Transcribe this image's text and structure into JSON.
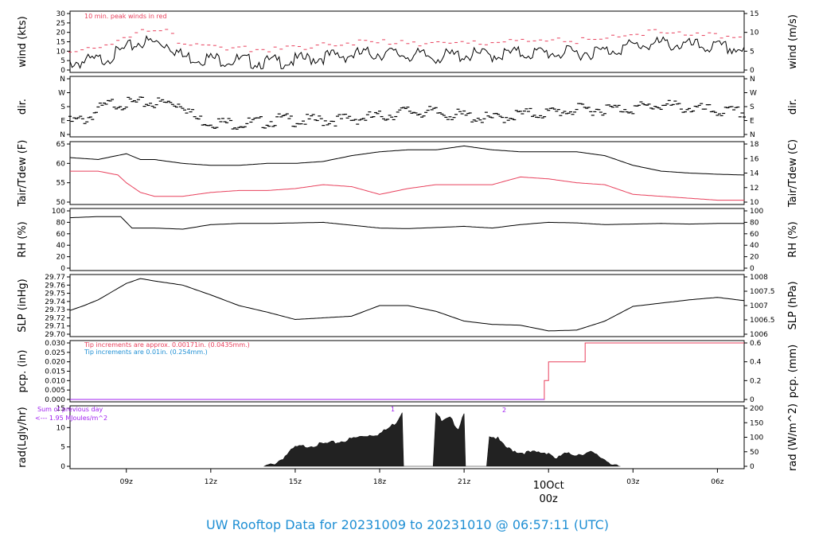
{
  "footer": {
    "title": "UW Rooftop Data for 20231009  to  20231010 @ 06:57:11  (UTC)"
  },
  "colors": {
    "black": "#000000",
    "red": "#e8405c",
    "blue": "#1f8fd4",
    "purple": "#a020f0"
  },
  "x_axis": {
    "ticks": [
      "09z",
      "12z",
      "15z",
      "18z",
      "21z",
      "",
      "03z",
      "06z"
    ],
    "day_label": "10Oct",
    "day_time": "00z"
  },
  "chart_data": [
    {
      "id": "wind",
      "type": "line",
      "ylabel_left": "wind (kts)",
      "ylabel_right": "wind (m/s)",
      "ylim": [
        0,
        30
      ],
      "left_ticks": [
        "0",
        "5",
        "10",
        "15",
        "20",
        "25",
        "30"
      ],
      "right_ticks": [
        "0",
        "5",
        "10",
        "15"
      ],
      "annotation": "10 min. peak winds in red",
      "series": [
        {
          "name": "wind",
          "color": "black",
          "x": [
            7,
            8,
            8.7,
            9.5,
            10.5,
            11,
            12,
            13,
            14,
            15,
            16,
            17,
            18,
            19,
            20,
            21,
            22,
            23,
            24,
            25,
            26,
            27,
            28,
            29,
            30,
            30.95
          ],
          "values": [
            4,
            5,
            9,
            15,
            14,
            7,
            6,
            5,
            4,
            5,
            7,
            8,
            9,
            8,
            7,
            8,
            8,
            9,
            9,
            9,
            10,
            13,
            14,
            13,
            12,
            11
          ]
        }
      ]
    },
    {
      "id": "dir",
      "type": "scatter",
      "ylabel_left": "dir.",
      "ylabel_right": "dir.",
      "ylim": [
        0,
        360
      ],
      "left_ticks": [
        "N",
        "E",
        "S",
        "W",
        "N"
      ],
      "right_ticks": [
        "N",
        "E",
        "S",
        "W",
        "N"
      ],
      "series": [
        {
          "name": "dir",
          "color": "black",
          "x": [
            7,
            7.6,
            8,
            8.5,
            9,
            10,
            11,
            11.5,
            12,
            13,
            14,
            14.5,
            15,
            16,
            17,
            18,
            19,
            20,
            21,
            22,
            23,
            24,
            25,
            26,
            27,
            28,
            29,
            30,
            30.95
          ],
          "values": [
            80,
            100,
            160,
            200,
            200,
            205,
            200,
            100,
            80,
            70,
            80,
            100,
            90,
            90,
            100,
            115,
            150,
            140,
            120,
            100,
            130,
            140,
            160,
            165,
            170,
            190,
            170,
            150,
            140
          ]
        }
      ]
    },
    {
      "id": "temp",
      "type": "line",
      "ylabel_left": "Tair/Tdew (F)",
      "ylabel_right": "Tair/Tdew (C)",
      "ylim": [
        50,
        65
      ],
      "left_ticks": [
        "50",
        "55",
        "60",
        "65"
      ],
      "right_ticks": [
        "10",
        "12",
        "14",
        "16",
        "18"
      ],
      "series": [
        {
          "name": "Tair",
          "color": "black",
          "x": [
            7,
            8,
            9,
            9.5,
            10,
            11,
            12,
            13,
            14,
            15,
            16,
            17,
            18,
            19,
            20,
            21,
            22,
            23,
            24,
            25,
            26,
            27,
            28,
            29,
            30,
            30.95
          ],
          "values": [
            61.5,
            61,
            62.5,
            61,
            61,
            60,
            59.5,
            59.5,
            60,
            60,
            60.5,
            62,
            63,
            63.5,
            63.5,
            64.5,
            63.5,
            63,
            63,
            63,
            62,
            59.5,
            58,
            57.5,
            57.2,
            57
          ]
        },
        {
          "name": "Tdew",
          "color": "red",
          "x": [
            7,
            8,
            8.7,
            9,
            9.5,
            10,
            11,
            12,
            13,
            14,
            15,
            16,
            17,
            18,
            19,
            20,
            21,
            22,
            23,
            24,
            25,
            26,
            27,
            28,
            29,
            30,
            30.95
          ],
          "values": [
            58,
            58,
            57,
            55,
            52.5,
            51.5,
            51.5,
            52.5,
            53,
            53,
            53.5,
            54.5,
            54,
            52,
            53.5,
            54.5,
            54.5,
            54.5,
            56.5,
            56,
            55,
            54.5,
            52,
            51.5,
            51,
            50.5,
            50.5
          ]
        }
      ]
    },
    {
      "id": "rh",
      "type": "line",
      "ylabel_left": "RH (%)",
      "ylabel_right": "RH (%)",
      "ylim": [
        0,
        100
      ],
      "left_ticks": [
        "0",
        "20",
        "40",
        "60",
        "80",
        "100"
      ],
      "right_ticks": [
        "0",
        "20",
        "40",
        "60",
        "80",
        "100"
      ],
      "series": [
        {
          "name": "RH",
          "color": "black",
          "x": [
            7,
            8,
            8.8,
            9.2,
            10,
            11,
            12,
            13,
            14,
            15,
            16,
            17,
            18,
            19,
            20,
            21,
            22,
            23,
            24,
            25,
            26,
            27,
            28,
            29,
            30,
            30.95
          ],
          "values": [
            88,
            90,
            90,
            70,
            70,
            68,
            76,
            78,
            78,
            79,
            80,
            75,
            70,
            69,
            71,
            73,
            70,
            76,
            80,
            79,
            76,
            77,
            78,
            77,
            78,
            78
          ]
        }
      ]
    },
    {
      "id": "slp",
      "type": "line",
      "ylabel_left": "SLP (inHg)",
      "ylabel_right": "SLP (hPa)",
      "ylim": [
        29.7,
        29.77
      ],
      "left_ticks": [
        "29.70",
        "29.71",
        "29.72",
        "29.73",
        "29.74",
        "29.75",
        "29.76",
        "29.77"
      ],
      "right_ticks": [
        "1006",
        "1006.5",
        "1007",
        "1007.5",
        "1008"
      ],
      "series": [
        {
          "name": "SLP",
          "color": "black",
          "x": [
            7,
            7.5,
            8,
            9,
            9.5,
            10,
            11,
            12,
            13,
            14,
            15,
            16,
            17,
            18,
            19,
            20,
            21,
            22,
            23,
            24,
            25,
            26,
            27,
            28,
            29,
            30,
            30.95
          ],
          "values": [
            29.729,
            29.735,
            29.742,
            29.762,
            29.768,
            29.765,
            29.76,
            29.748,
            29.735,
            29.727,
            29.718,
            29.72,
            29.722,
            29.735,
            29.735,
            29.728,
            29.716,
            29.712,
            29.711,
            29.704,
            29.705,
            29.716,
            29.734,
            29.738,
            29.742,
            29.745,
            29.741
          ]
        }
      ]
    },
    {
      "id": "pcp",
      "type": "line",
      "ylabel_left": "pcp. (in)",
      "ylabel_right": "pcp. (mm)",
      "ylim": [
        0,
        0.03
      ],
      "left_ticks": [
        "0.000",
        "0.005",
        "0.010",
        "0.015",
        "0.020",
        "0.025",
        "0.030"
      ],
      "right_ticks": [
        "0",
        "0.2",
        "0.4",
        "0.6"
      ],
      "annotations": [
        {
          "text": "Tip increments are approx. 0.00171in. (0.0435mm.)",
          "color": "red"
        },
        {
          "text": "Tip increments are 0.01in. (0.254mm.)",
          "color": "blue"
        }
      ],
      "series": [
        {
          "name": "pcp",
          "color": "red",
          "x": [
            7,
            23.85,
            23.85,
            24.0,
            24.0,
            25.3,
            25.3,
            30.95
          ],
          "values": [
            0,
            0,
            0.01,
            0.01,
            0.02,
            0.02,
            0.03,
            0.03
          ]
        },
        {
          "name": "pcp_tip",
          "color": "purple",
          "x": [
            7,
            23.85
          ],
          "values": [
            0,
            0
          ]
        }
      ]
    },
    {
      "id": "rad",
      "type": "area",
      "ylabel_left": "rad(Lgly/hr)",
      "ylabel_right": "rad (W/m^2)",
      "ylim": [
        0,
        17
      ],
      "left_ticks": [
        "0",
        "5",
        "10",
        "15"
      ],
      "right_ticks": [
        "0",
        "50",
        "100",
        "150",
        "200"
      ],
      "annotations": [
        {
          "text": "Sum of previous day",
          "color": "purple"
        },
        {
          "text": "<--- 1.95 MJoules/m^2",
          "color": "purple"
        },
        {
          "text": "1",
          "color": "purple"
        },
        {
          "text": "2",
          "color": "purple"
        }
      ],
      "series": [
        {
          "name": "rad",
          "color": "black",
          "x": [
            13.9,
            14.2,
            14.5,
            15,
            15.5,
            16,
            16.5,
            17,
            17.5,
            18,
            18.3,
            18.6,
            18.8,
            18.85,
            19.5,
            19.9,
            20.0,
            20.2,
            20.5,
            20.8,
            21.0,
            21.05,
            21.8,
            21.9,
            22.2,
            22.4,
            22.6,
            23,
            23.5,
            24,
            24.3,
            24.5,
            25,
            25.5,
            26,
            26.2,
            26.5,
            26.55
          ],
          "values": [
            0,
            0.5,
            2,
            5.5,
            6,
            6.5,
            7,
            8,
            9,
            9.5,
            11,
            13,
            16,
            0,
            0,
            0,
            16,
            13,
            14,
            11,
            16,
            0,
            0,
            9,
            8,
            6,
            5,
            4,
            4,
            4,
            2,
            3.5,
            3.5,
            4,
            2,
            1,
            0,
            0
          ]
        }
      ]
    }
  ]
}
